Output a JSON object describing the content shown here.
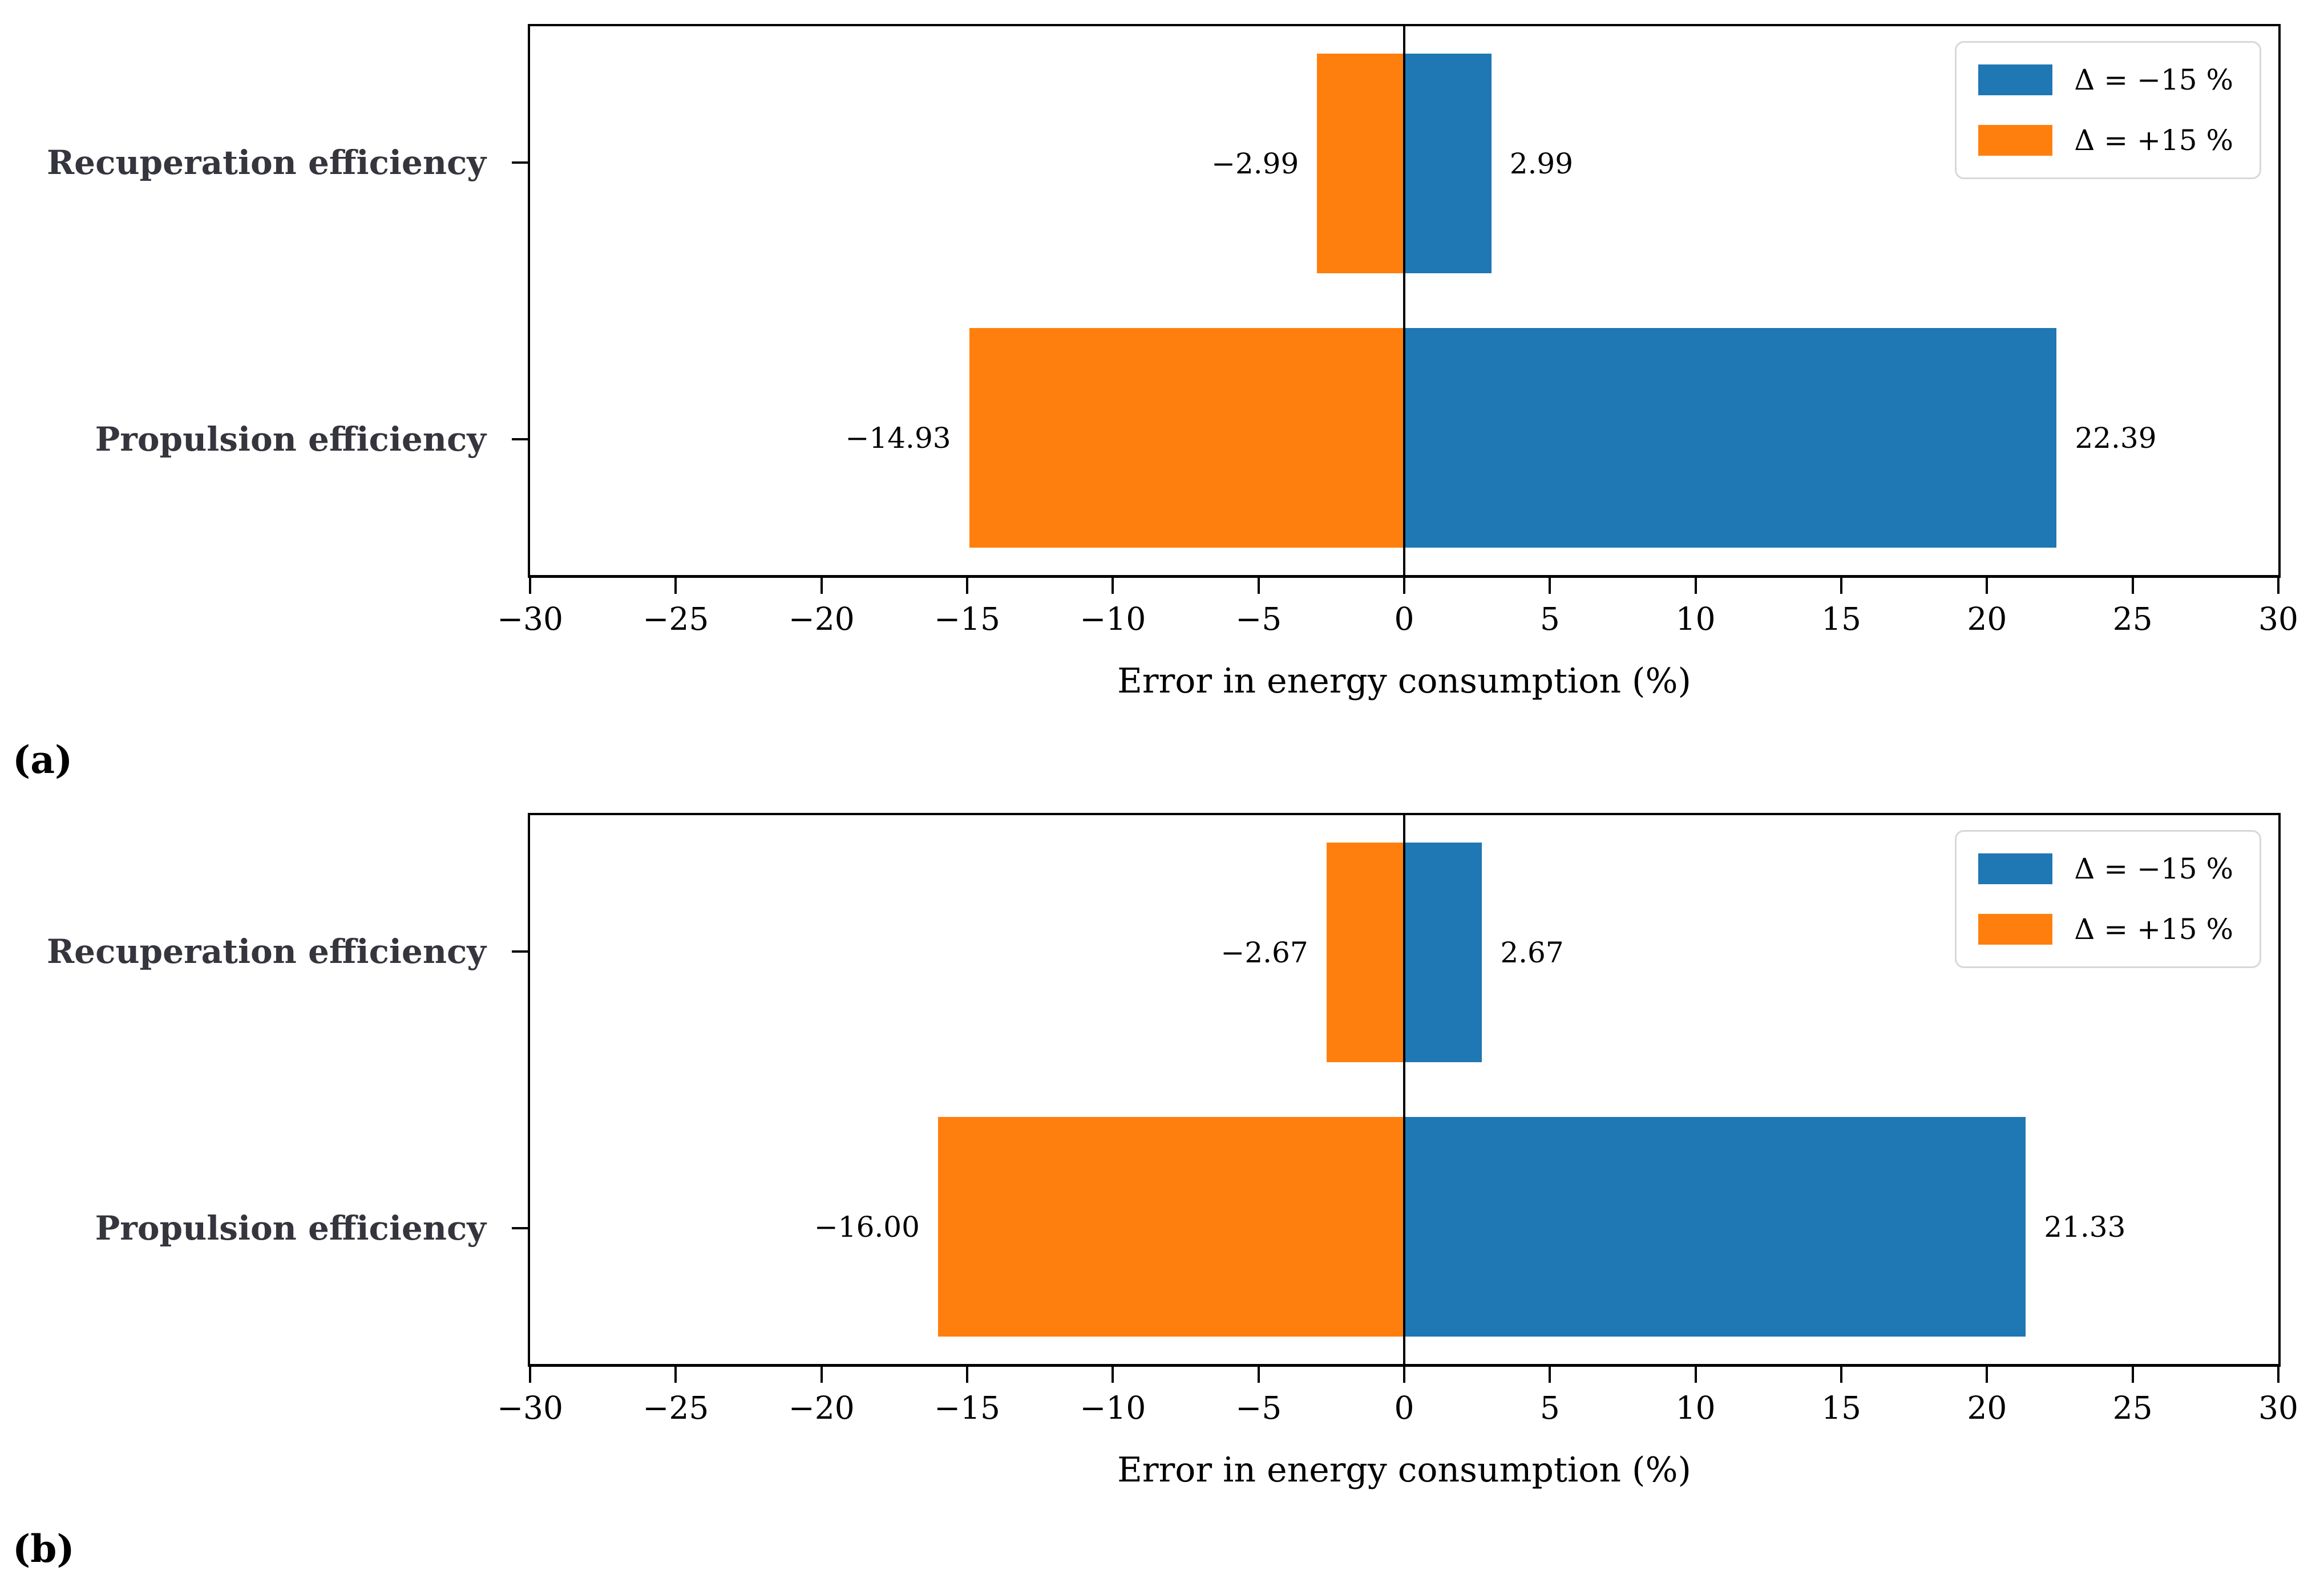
{
  "colors": {
    "series_minus15": "#1f77b4",
    "series_plus15": "#ff7f0e",
    "category_label": "#35353d",
    "axis": "#000000",
    "legend_border": "#d8d8d8",
    "background": "#ffffff"
  },
  "chart_data": [
    {
      "type": "bar",
      "orientation": "horizontal",
      "panel_label": "(a)",
      "title": "",
      "xlabel": "Error in energy consumption (%)",
      "ylabel": "",
      "xlim": [
        -30,
        30
      ],
      "grid": false,
      "legend_position": "upper right",
      "categories": [
        "Recuperation efficiency",
        "Propulsion efficiency"
      ],
      "series": [
        {
          "name": "Δ = −15 %",
          "color": "#1f77b4",
          "values": [
            2.99,
            22.39
          ],
          "labels": [
            "2.99",
            "22.39"
          ]
        },
        {
          "name": "Δ = +15 %",
          "color": "#ff7f0e",
          "values": [
            -2.99,
            -14.93
          ],
          "labels": [
            "−2.99",
            "−14.93"
          ]
        }
      ],
      "xticks": [
        -30,
        -25,
        -20,
        -15,
        -10,
        -5,
        0,
        5,
        10,
        15,
        20,
        25,
        30
      ],
      "xtick_labels": [
        "−30",
        "−25",
        "−20",
        "−15",
        "−10",
        "−5",
        "0",
        "5",
        "10",
        "15",
        "20",
        "25",
        "30"
      ]
    },
    {
      "type": "bar",
      "orientation": "horizontal",
      "panel_label": "(b)",
      "title": "",
      "xlabel": "Error in energy consumption (%)",
      "ylabel": "",
      "xlim": [
        -30,
        30
      ],
      "grid": false,
      "legend_position": "upper right",
      "categories": [
        "Recuperation efficiency",
        "Propulsion efficiency"
      ],
      "series": [
        {
          "name": "Δ = −15 %",
          "color": "#1f77b4",
          "values": [
            2.67,
            21.33
          ],
          "labels": [
            "2.67",
            "21.33"
          ]
        },
        {
          "name": "Δ = +15 %",
          "color": "#ff7f0e",
          "values": [
            -2.67,
            -16.0
          ],
          "labels": [
            "−2.67",
            "−16.00"
          ]
        }
      ],
      "xticks": [
        -30,
        -25,
        -20,
        -15,
        -10,
        -5,
        0,
        5,
        10,
        15,
        20,
        25,
        30
      ],
      "xtick_labels": [
        "−30",
        "−25",
        "−20",
        "−15",
        "−10",
        "−5",
        "0",
        "5",
        "10",
        "15",
        "20",
        "25",
        "30"
      ]
    }
  ]
}
